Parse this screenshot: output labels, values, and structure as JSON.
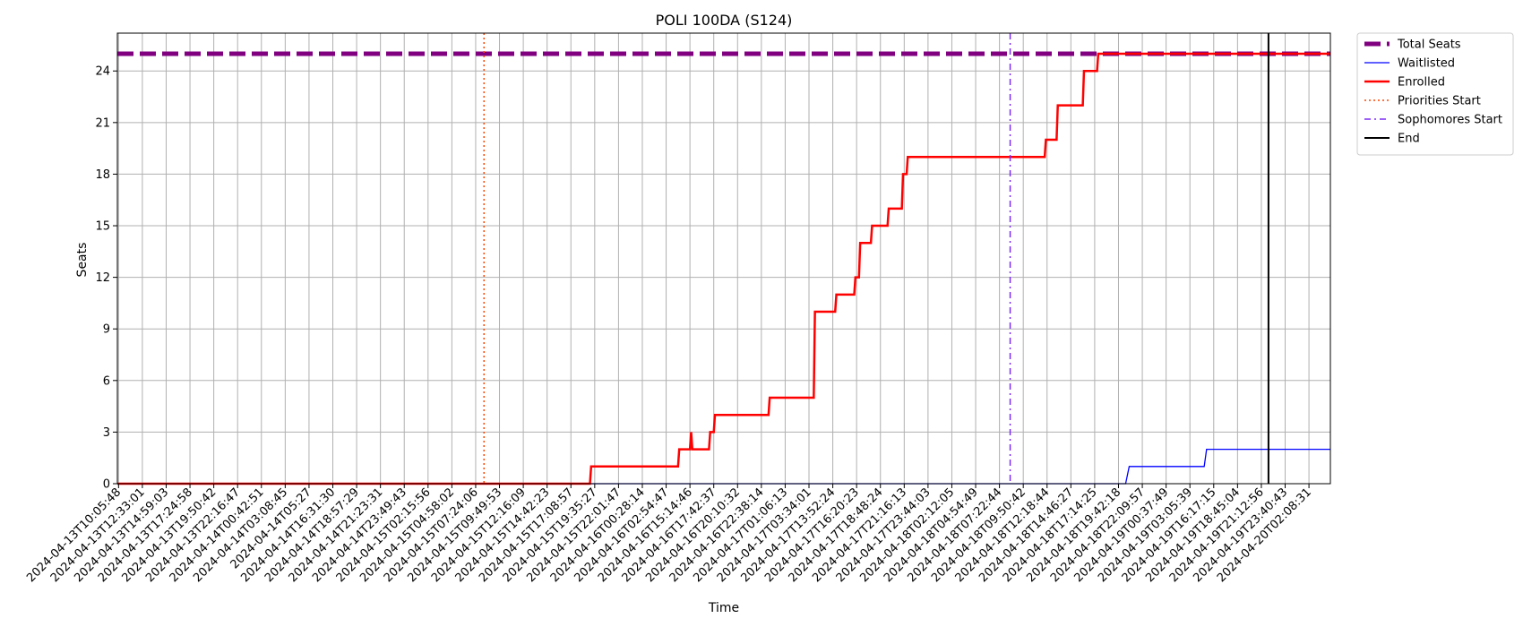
{
  "chart_data": {
    "type": "line",
    "title": "POLI 100DA (S124)",
    "xlabel": "Time",
    "ylabel": "Seats",
    "ylim": [
      0,
      26.2
    ],
    "yticks": [
      0,
      3,
      6,
      9,
      12,
      15,
      18,
      21,
      24
    ],
    "grid": true,
    "legend_position": "outside-top-right",
    "x_ticks": [
      "2024-04-13T10:05:48",
      "2024-04-13T12:33:01",
      "2024-04-13T14:59:03",
      "2024-04-13T17:24:58",
      "2024-04-13T19:50:42",
      "2024-04-13T22:16:47",
      "2024-04-14T00:42:51",
      "2024-04-14T03:08:45",
      "2024-04-14T05:27",
      "2024-04-14T16:31:30",
      "2024-04-14T18:57:29",
      "2024-04-14T21:23:31",
      "2024-04-14T23:49:43",
      "2024-04-15T02:15:56",
      "2024-04-15T04:58:02",
      "2024-04-15T07:24:06",
      "2024-04-15T09:49:53",
      "2024-04-15T12:16:09",
      "2024-04-15T14:42:23",
      "2024-04-15T17:08:57",
      "2024-04-15T19:35:27",
      "2024-04-15T22:01:47",
      "2024-04-16T00:28:14",
      "2024-04-16T02:54:47",
      "2024-04-16T15:14:46",
      "2024-04-16T17:42:37",
      "2024-04-16T20:10:32",
      "2024-04-16T22:38:14",
      "2024-04-17T01:06:13",
      "2024-04-17T03:34:01",
      "2024-04-17T13:52:24",
      "2024-04-17T16:20:23",
      "2024-04-17T18:48:24",
      "2024-04-17T21:16:13",
      "2024-04-17T23:44:03",
      "2024-04-18T02:12:05",
      "2024-04-18T04:54:49",
      "2024-04-18T07:22:44",
      "2024-04-18T09:50:42",
      "2024-04-18T12:18:44",
      "2024-04-18T14:46:27",
      "2024-04-18T17:14:25",
      "2024-04-18T19:42:18",
      "2024-04-18T22:09:57",
      "2024-04-19T00:37:49",
      "2024-04-19T03:05:39",
      "2024-04-19T16:17:15",
      "2024-04-19T18:45:04",
      "2024-04-19T21:12:56",
      "2024-04-19T23:40:43",
      "2024-04-20T02:08:31"
    ],
    "x_range_ticks": [
      -0.05,
      50.9
    ],
    "series": [
      {
        "name": "Total Seats",
        "style": "dashed-thick",
        "color": "#800080",
        "points": [
          [
            -0.05,
            25
          ],
          [
            50.9,
            25
          ]
        ]
      },
      {
        "name": "Waitlisted",
        "style": "solid-thin",
        "color": "#0000ff",
        "points": [
          [
            -0.05,
            0
          ],
          [
            42.3,
            0
          ],
          [
            42.45,
            1
          ],
          [
            45.6,
            1
          ],
          [
            45.7,
            2
          ],
          [
            50.9,
            2
          ]
        ]
      },
      {
        "name": "Enrolled",
        "style": "solid-thick",
        "color": "#ff0000",
        "points": [
          [
            -0.05,
            0
          ],
          [
            19.8,
            0
          ],
          [
            19.85,
            1
          ],
          [
            23.5,
            1
          ],
          [
            23.55,
            2
          ],
          [
            24.0,
            2
          ],
          [
            24.05,
            3
          ],
          [
            24.1,
            2
          ],
          [
            24.8,
            2
          ],
          [
            24.85,
            3
          ],
          [
            25.0,
            3
          ],
          [
            25.05,
            4
          ],
          [
            27.3,
            4
          ],
          [
            27.35,
            5
          ],
          [
            29.2,
            5
          ],
          [
            29.25,
            10
          ],
          [
            30.1,
            10
          ],
          [
            30.15,
            11
          ],
          [
            30.9,
            11
          ],
          [
            30.95,
            12
          ],
          [
            31.1,
            12
          ],
          [
            31.15,
            14
          ],
          [
            31.6,
            14
          ],
          [
            31.65,
            15
          ],
          [
            32.3,
            15
          ],
          [
            32.35,
            16
          ],
          [
            32.9,
            16
          ],
          [
            32.95,
            18
          ],
          [
            33.1,
            18
          ],
          [
            33.15,
            19
          ],
          [
            38.9,
            19
          ],
          [
            38.95,
            20
          ],
          [
            39.4,
            20
          ],
          [
            39.45,
            22
          ],
          [
            40.5,
            22
          ],
          [
            40.55,
            24
          ],
          [
            41.1,
            24
          ],
          [
            41.15,
            25
          ],
          [
            50.9,
            25
          ]
        ]
      }
    ],
    "vertical_lines": [
      {
        "name": "Priorities Start",
        "x": 15.35,
        "color": "#ff4500",
        "style": "dotted"
      },
      {
        "name": "Sophomores Start",
        "x": 37.45,
        "color": "#7b2cf5",
        "style": "dashdot"
      },
      {
        "name": "End",
        "x": 48.3,
        "color": "#000000",
        "style": "solid"
      }
    ],
    "legend": [
      {
        "label": "Total Seats",
        "color": "#800080",
        "style": "dashed-thick"
      },
      {
        "label": "Waitlisted",
        "color": "#0000ff",
        "style": "solid-thin"
      },
      {
        "label": "Enrolled",
        "color": "#ff0000",
        "style": "solid-thick"
      },
      {
        "label": "Priorities Start",
        "color": "#ff4500",
        "style": "dotted"
      },
      {
        "label": "Sophomores Start",
        "color": "#7b2cf5",
        "style": "dashdot"
      },
      {
        "label": "End",
        "color": "#000000",
        "style": "solid"
      }
    ]
  }
}
